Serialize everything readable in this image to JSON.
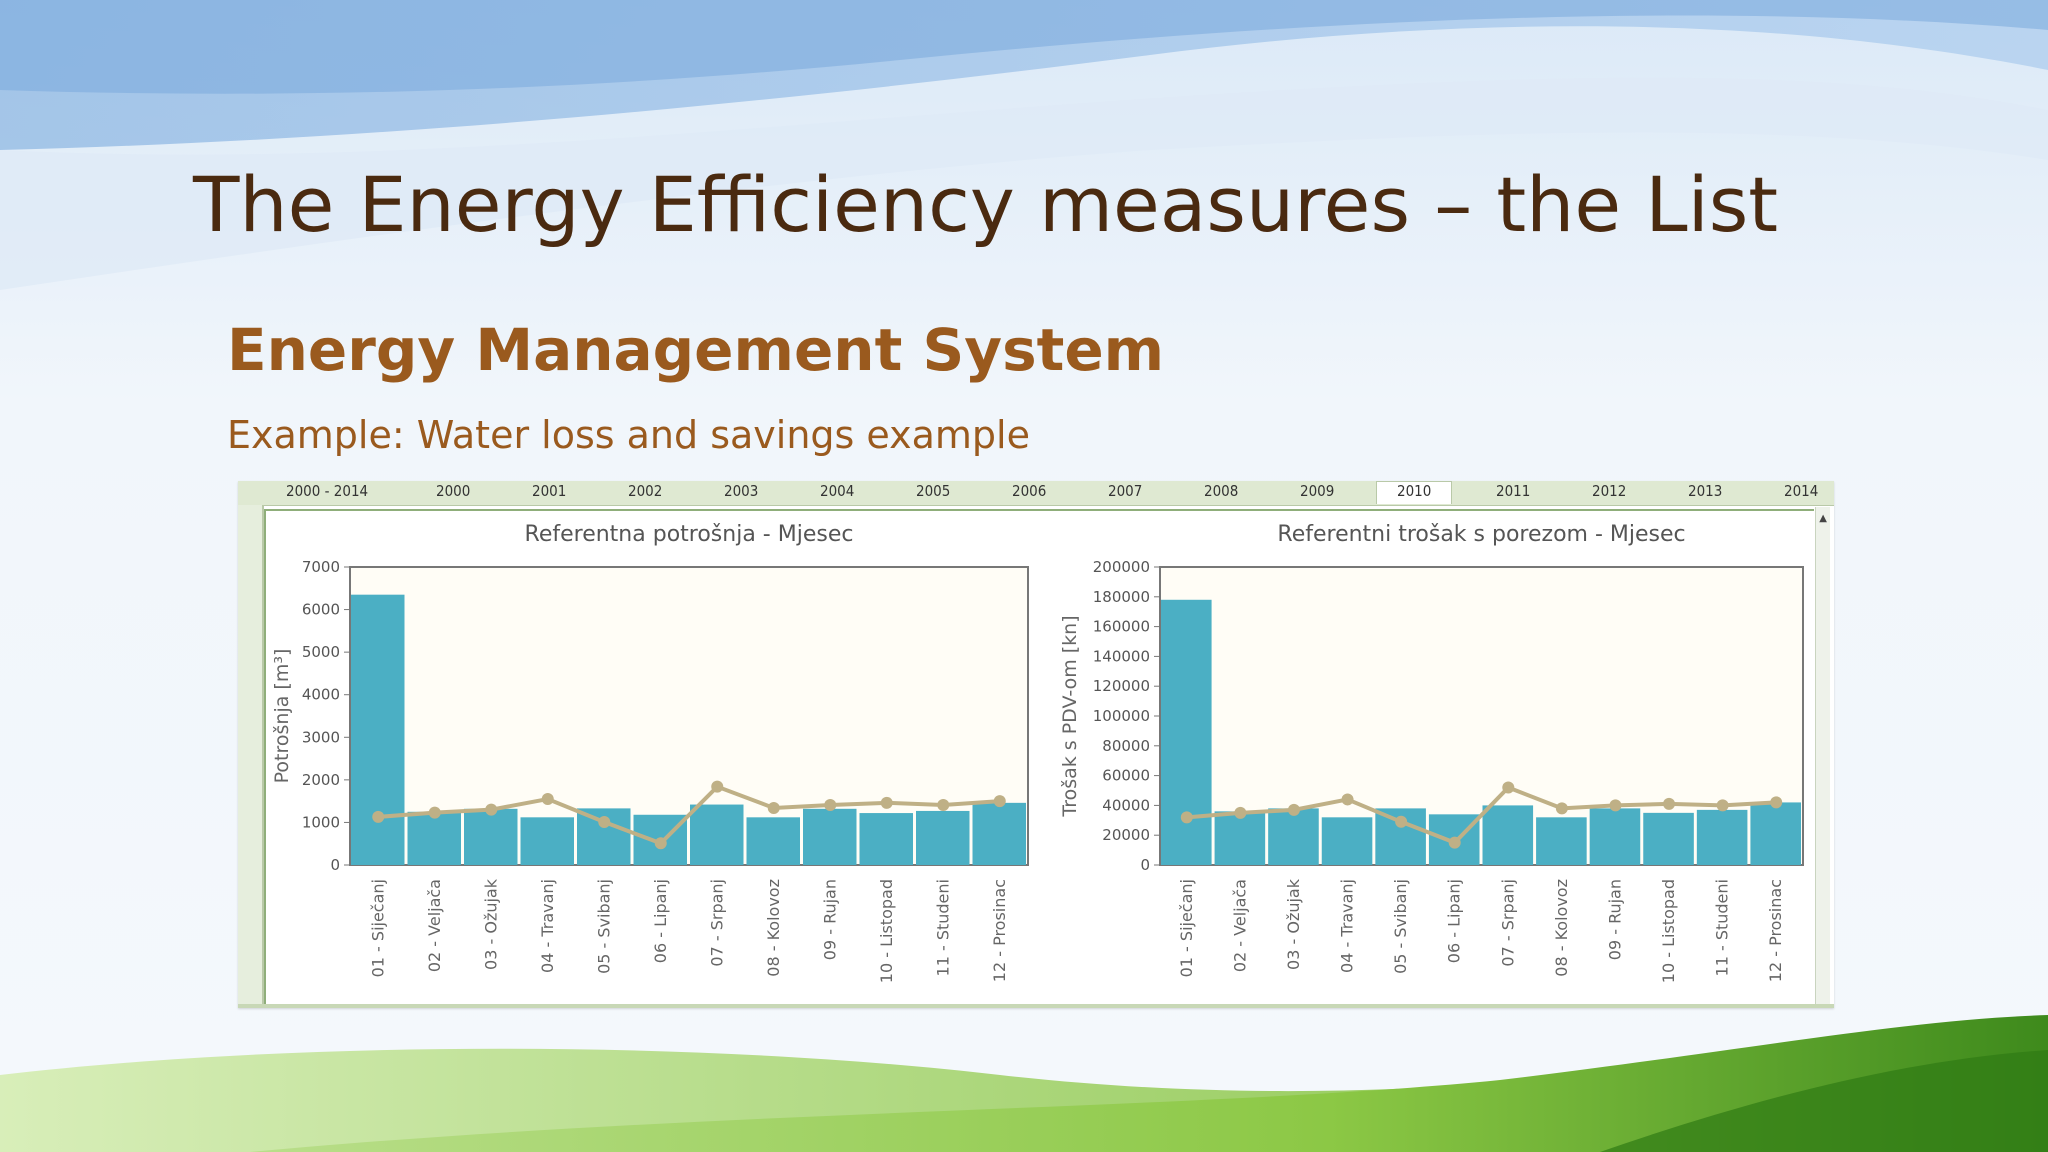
{
  "slide": {
    "title": "The Energy Efficiency measures – the List",
    "subtitle": "Energy Management System",
    "example": "Example: Water loss and savings example"
  },
  "tabs": [
    "2000 - 2014",
    "2000",
    "2001",
    "2002",
    "2003",
    "2004",
    "2005",
    "2006",
    "2007",
    "2008",
    "2009",
    "2010",
    "2011",
    "2012",
    "2013",
    "2014"
  ],
  "selected_tab": "2010",
  "colors": {
    "bar": "#4bafc4",
    "line": "#bfb086",
    "title": "#4a2a10",
    "subtitle": "#9a5a1e"
  },
  "chart_data": [
    {
      "type": "bar",
      "title": "Referentna potrošnja - Mjesec",
      "ylabel": "Potrošnja [m³]",
      "xlabel": "",
      "ylim": [
        0,
        7000
      ],
      "yticks": [
        "0",
        "1000",
        "2000",
        "3000",
        "4000",
        "5000",
        "6000",
        "7000"
      ],
      "categories": [
        "01 - Siječanj",
        "02 - Veljača",
        "03 - Ožujak",
        "04 - Travanj",
        "05 - Svibanj",
        "06 - Lipanj",
        "07 - Srpanj",
        "08 - Kolovoz",
        "09 - Rujan",
        "10 - Listopad",
        "11 - Studeni",
        "12 - Prosinac"
      ],
      "series": [
        {
          "kind": "bar",
          "values": [
            6350,
            1250,
            1320,
            1120,
            1330,
            1180,
            1420,
            1120,
            1320,
            1220,
            1270,
            1460
          ]
        },
        {
          "kind": "line",
          "values": [
            1130,
            1230,
            1300,
            1550,
            1010,
            510,
            1840,
            1340,
            1410,
            1460,
            1410,
            1500
          ]
        }
      ],
      "grid": false
    },
    {
      "type": "bar",
      "title": "Referentni trošak s porezom - Mjesec",
      "ylabel": "Trošak s PDV-om [kn]",
      "xlabel": "",
      "ylim": [
        0,
        200000
      ],
      "yticks": [
        "0",
        "20000",
        "40000",
        "60000",
        "80000",
        "100000",
        "120000",
        "140000",
        "160000",
        "180000",
        "200000"
      ],
      "categories": [
        "01 - Siječanj",
        "02 - Veljača",
        "03 - Ožujak",
        "04 - Travanj",
        "05 - Svibanj",
        "06 - Lipanj",
        "07 - Srpanj",
        "08 - Kolovoz",
        "09 - Rujan",
        "10 - Listopad",
        "11 - Studeni",
        "12 - Prosinac"
      ],
      "series": [
        {
          "kind": "bar",
          "values": [
            178000,
            36000,
            38000,
            32000,
            38000,
            34000,
            40000,
            32000,
            38000,
            35000,
            37000,
            42000
          ]
        },
        {
          "kind": "line",
          "values": [
            32000,
            35000,
            37000,
            44000,
            29000,
            15000,
            52000,
            38000,
            40000,
            41000,
            40000,
            42000
          ]
        }
      ],
      "grid": false
    }
  ]
}
